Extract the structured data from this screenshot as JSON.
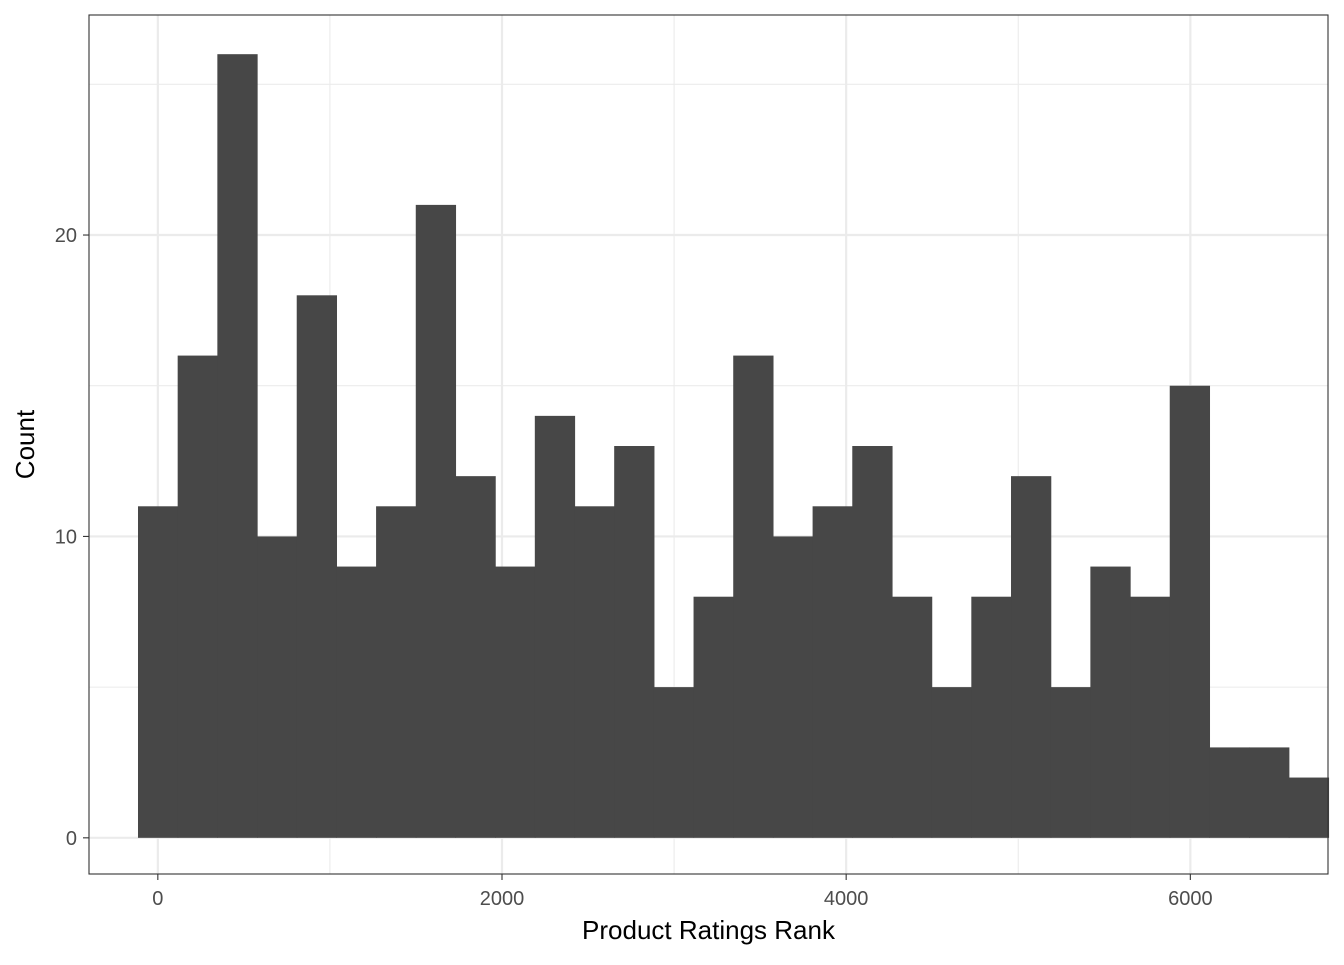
{
  "chart_data": {
    "type": "bar",
    "title": "",
    "xlabel": "Product Ratings Rank",
    "ylabel": "Count",
    "xlim": [
      -400,
      6800
    ],
    "ylim": [
      -1.2,
      27.3
    ],
    "x_ticks": [
      0,
      2000,
      4000,
      6000
    ],
    "x_minor_ticks": [
      1000,
      3000,
      5000,
      7000
    ],
    "y_ticks": [
      0,
      10,
      20
    ],
    "y_minor_ticks": [
      5,
      15,
      25
    ],
    "grid": true,
    "bin_width": 230.6,
    "bin_start": -115.3,
    "values": [
      11,
      16,
      26,
      10,
      18,
      9,
      11,
      21,
      12,
      9,
      14,
      11,
      13,
      5,
      8,
      16,
      10,
      11,
      13,
      8,
      5,
      8,
      12,
      5,
      9,
      8,
      15,
      3,
      3,
      2
    ],
    "colors": {
      "bar": "#474747",
      "grid": "#ebebeb",
      "panel_border": "#333333",
      "tick": "#333333",
      "tick_label": "#4d4d4d"
    }
  }
}
